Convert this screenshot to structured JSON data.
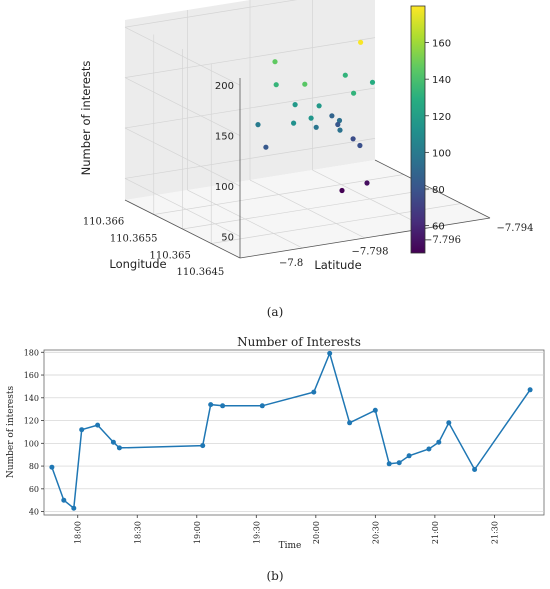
{
  "figure_a_caption": "(a)",
  "figure_b_caption": "(b)",
  "chart_data": [
    {
      "type": "scatter",
      "projection": "3d",
      "zlabel": "Number of interests",
      "xlabel": "Longitude",
      "ylabel": "Latitude",
      "z_ticks": [
        "50",
        "100",
        "150",
        "200"
      ],
      "longitude_ticks": [
        "110.366",
        "110.3655",
        "110.365",
        "110.3645"
      ],
      "latitude_ticks": [
        "−7.8",
        "−7.798",
        "−7.796",
        "−7.794"
      ],
      "colorbar": {
        "ticks": [
          "60",
          "80",
          "100",
          "120",
          "140",
          "160"
        ],
        "colormap": "viridis",
        "range": [
          45,
          180
        ]
      },
      "grid": true,
      "points": [
        {
          "value": 179
        },
        {
          "value": 147
        },
        {
          "value": 145
        },
        {
          "value": 134
        },
        {
          "value": 133
        },
        {
          "value": 133
        },
        {
          "value": 129
        },
        {
          "value": 118
        },
        {
          "value": 118
        },
        {
          "value": 116
        },
        {
          "value": 113
        },
        {
          "value": 101
        },
        {
          "value": 98
        },
        {
          "value": 96
        },
        {
          "value": 95
        },
        {
          "value": 89
        },
        {
          "value": 83
        },
        {
          "value": 82
        },
        {
          "value": 79
        },
        {
          "value": 77
        },
        {
          "value": 50
        },
        {
          "value": 43
        }
      ]
    },
    {
      "type": "line",
      "title": "Number of Interests",
      "xlabel": "Time",
      "ylabel": "Number of interests",
      "ylim": [
        37,
        182
      ],
      "xlim": [
        "17:43",
        "21:55"
      ],
      "y_ticks": [
        "40",
        "60",
        "80",
        "100",
        "120",
        "140",
        "160",
        "180"
      ],
      "x_ticks": [
        "18:00",
        "18:30",
        "19:00",
        "19:30",
        "20:00",
        "20:30",
        "21:00",
        "21:30"
      ],
      "grid": "horizontal",
      "color": "#1f77b4",
      "series": [
        {
          "x": [
            "17:47",
            "17:53",
            "17:58",
            "18:02",
            "18:10",
            "18:18",
            "18:21",
            "19:03",
            "19:07",
            "19:13",
            "19:33",
            "19:59",
            "20:07",
            "20:17",
            "20:30",
            "20:37",
            "20:42",
            "20:47",
            "20:57",
            "21:02",
            "21:07",
            "21:20",
            "21:48"
          ],
          "y": [
            79,
            50,
            43,
            112,
            116,
            101,
            96,
            98,
            134,
            133,
            133,
            145,
            179,
            118,
            129,
            82,
            83,
            89,
            95,
            101,
            118,
            77,
            147
          ]
        }
      ]
    }
  ]
}
